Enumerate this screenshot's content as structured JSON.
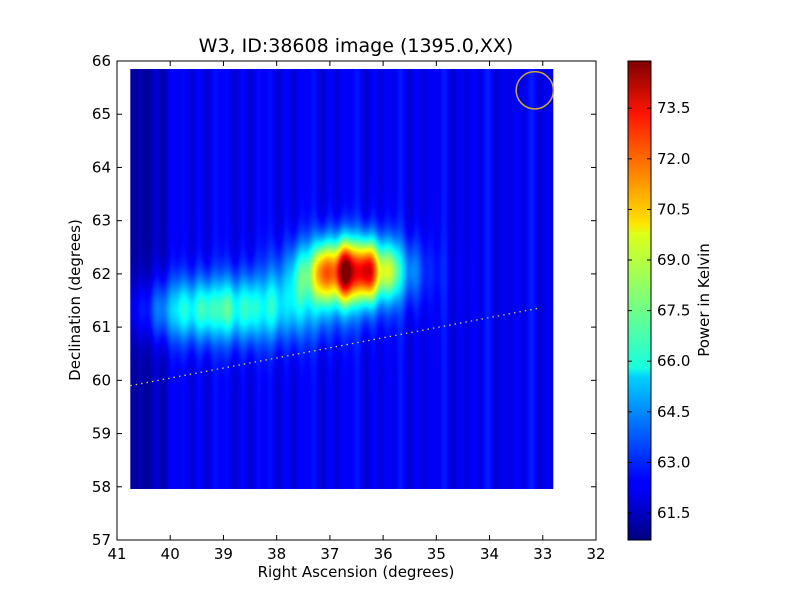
{
  "chart_data": {
    "type": "heatmap",
    "title": "W3, ID:38608 image (1395.0,XX)",
    "xlabel": "Right Ascension (degrees)",
    "ylabel": "Declination (degrees)",
    "xlim": [
      41,
      32
    ],
    "ylim": [
      57,
      66
    ],
    "x_ticks": [
      "41",
      "40",
      "39",
      "38",
      "37",
      "36",
      "35",
      "34",
      "33",
      "32"
    ],
    "y_ticks": [
      "57",
      "58",
      "59",
      "60",
      "61",
      "62",
      "63",
      "64",
      "65",
      "66"
    ],
    "colorbar": {
      "label": "Power in Kelvin",
      "range": [
        60.7,
        74.9
      ],
      "ticks": [
        "61.5",
        "63.0",
        "64.5",
        "66.0",
        "67.5",
        "69.0",
        "70.5",
        "72.0",
        "73.5"
      ],
      "colormap": "jet"
    },
    "map_extent": {
      "ra": [
        40.75,
        32.8
      ],
      "dec": [
        57.95,
        65.85
      ]
    },
    "background_level": 62.3,
    "peak": {
      "ra": 36.6,
      "dec": 62.05,
      "value": 74.5
    },
    "sources": [
      {
        "ra": 36.6,
        "dec": 62.05,
        "sigma_ra": 0.62,
        "sigma_dec": 0.42,
        "amp": 12.0
      },
      {
        "ra": 38.4,
        "dec": 61.35,
        "sigma_ra": 1.1,
        "sigma_dec": 0.45,
        "amp": 3.6
      },
      {
        "ra": 39.6,
        "dec": 61.3,
        "sigma_ra": 0.7,
        "sigma_dec": 0.4,
        "amp": 2.2
      }
    ],
    "beam": {
      "ra": 33.15,
      "dec": 65.45,
      "radius_deg": 0.35,
      "color": "#c8a93a"
    },
    "dotted_line": {
      "start": [
        40.75,
        59.9
      ],
      "end": [
        33.1,
        61.35
      ],
      "color": "#d8c66a"
    }
  }
}
